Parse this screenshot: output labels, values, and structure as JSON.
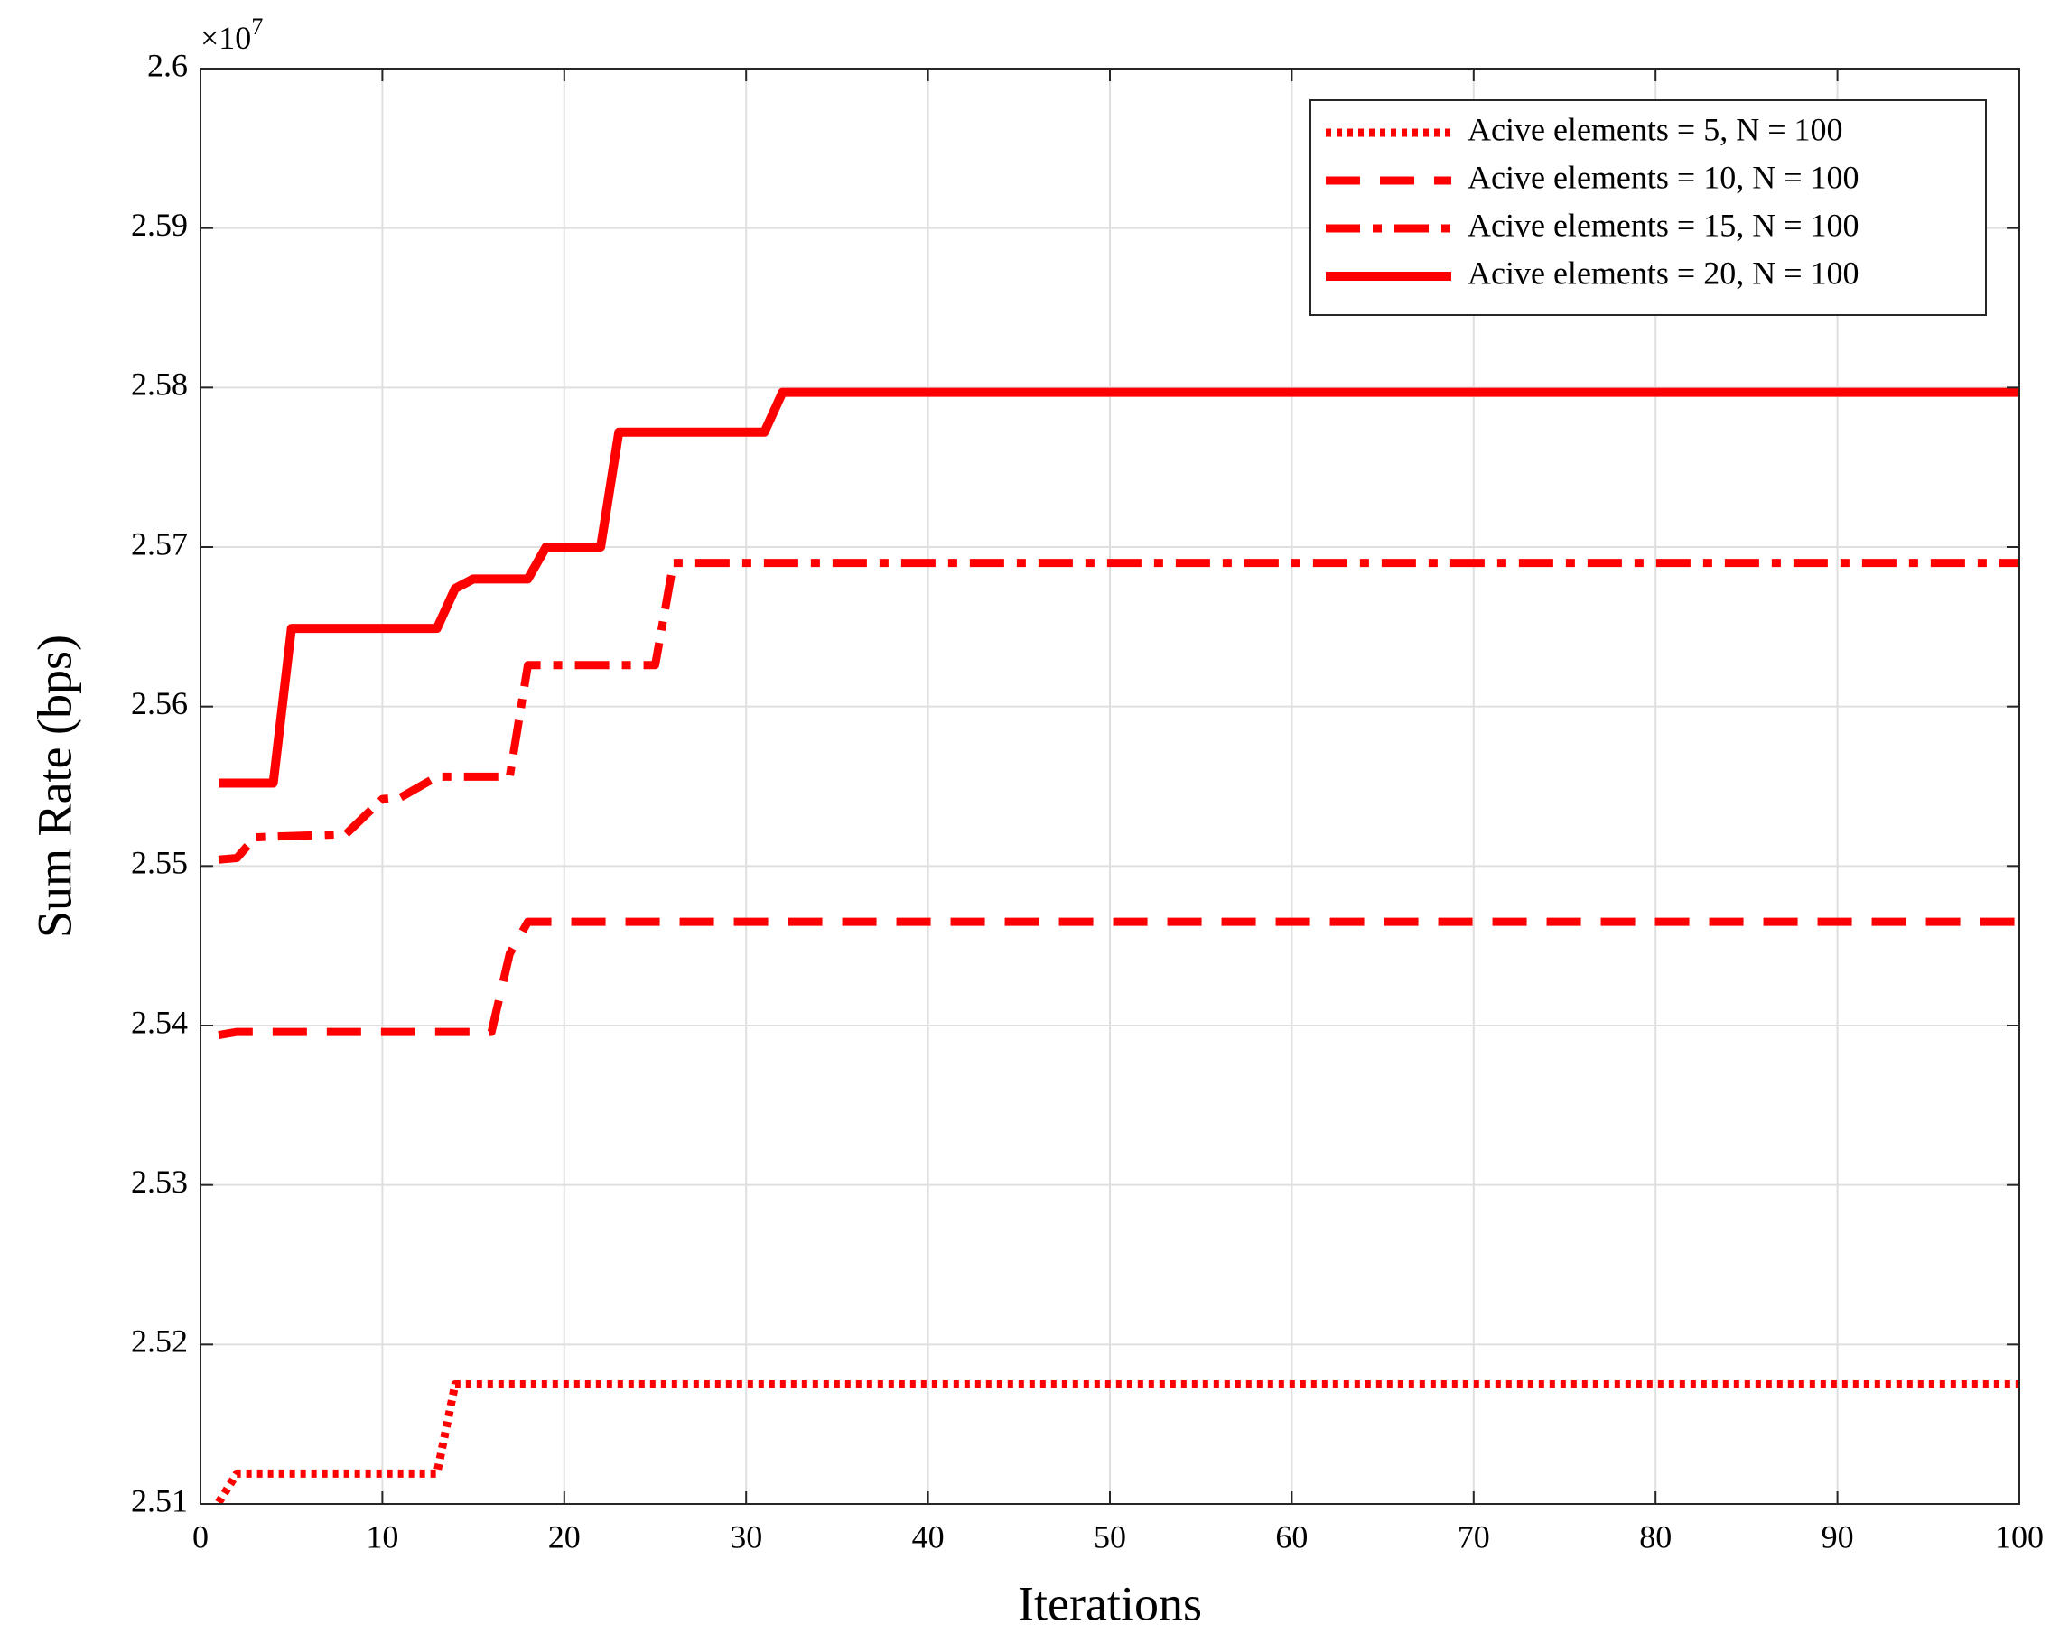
{
  "chart_data": {
    "type": "line",
    "x_label": "Iterations",
    "y_label": "Sum Rate (bps)",
    "y_scale_label": "×10",
    "y_scale_exponent": "7",
    "xlim": [
      0,
      100
    ],
    "xticks": [
      0,
      10,
      20,
      30,
      40,
      50,
      60,
      70,
      80,
      90,
      100
    ],
    "ylim": [
      2.51,
      2.6
    ],
    "yticks": [
      2.51,
      2.52,
      2.53,
      2.54,
      2.55,
      2.56,
      2.57,
      2.58,
      2.59,
      2.6
    ],
    "grid": true,
    "legend_position": "upper-right",
    "series": [
      {
        "name": "Acive elements = 5, N = 100",
        "color": "#ff0000",
        "style": "dotted",
        "x": [
          1,
          2,
          13,
          14,
          100
        ],
        "values": [
          2.5101,
          2.5119,
          2.5119,
          2.5175,
          2.5175
        ]
      },
      {
        "name": "Acive elements = 10, N = 100",
        "color": "#ff0000",
        "style": "dashed",
        "x": [
          1,
          2,
          16,
          17,
          18,
          100
        ],
        "values": [
          2.5394,
          2.5396,
          2.5396,
          2.5445,
          2.5465,
          2.5465
        ]
      },
      {
        "name": "Acive elements = 15, N = 100",
        "color": "#ff0000",
        "style": "dashdot",
        "x": [
          1,
          2,
          3,
          8,
          10,
          11,
          13,
          17,
          18,
          25,
          26,
          100
        ],
        "values": [
          2.5504,
          2.5505,
          2.5518,
          2.552,
          2.5542,
          2.5543,
          2.5556,
          2.5556,
          2.5626,
          2.5626,
          2.569,
          2.569
        ]
      },
      {
        "name": "Acive elements = 20, N = 100",
        "color": "#ff0000",
        "style": "solid",
        "x": [
          1,
          4,
          5,
          13,
          14,
          15,
          18,
          19,
          22,
          23,
          31,
          32,
          100
        ],
        "values": [
          2.5552,
          2.5552,
          2.5649,
          2.5649,
          2.5674,
          2.568,
          2.568,
          2.57,
          2.57,
          2.5772,
          2.5772,
          2.5797,
          2.5797
        ]
      }
    ]
  }
}
